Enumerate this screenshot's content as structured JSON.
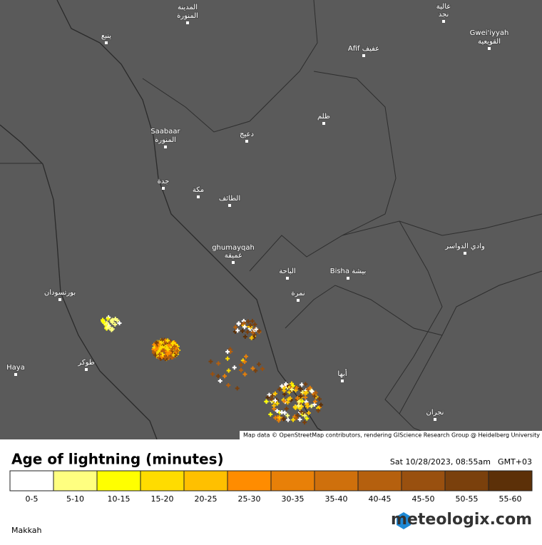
{
  "map": {
    "places": [
      "المدينة",
      "المنورة",
      "ينبع",
      "Afif عفيف",
      "عالية",
      "نجد",
      "Gwei'iyyah",
      "القويعية",
      "ظلم",
      "Saabaar",
      "المنورة",
      "دعيج",
      "جدة",
      "مكة",
      "الطائف",
      "ghumayqah",
      "غميقة",
      "وادي الدواسر",
      "الباحة",
      "Bisha بيشة",
      "نمرة",
      "بورتسودان",
      "طوكر",
      "Haya",
      "أبها",
      "نجران"
    ],
    "attribution": "Map data © OpenStreetMap contributors, rendering GIScience Research Group @ Heidelberg University"
  },
  "legend": {
    "title": "Age of lightning (minutes)",
    "timestamp": "Sat 10/28/2023, 08:55am",
    "timezone": "GMT+03",
    "items": [
      {
        "label": "0-5",
        "color": "#ffffff"
      },
      {
        "label": "5-10",
        "color": "#ffff80"
      },
      {
        "label": "10-15",
        "color": "#ffff00"
      },
      {
        "label": "15-20",
        "color": "#ffdc00"
      },
      {
        "label": "20-25",
        "color": "#ffc000"
      },
      {
        "label": "25-30",
        "color": "#ff8c00"
      },
      {
        "label": "30-35",
        "color": "#e88008"
      },
      {
        "label": "35-40",
        "color": "#cf700c"
      },
      {
        "label": "40-45",
        "color": "#b5600e"
      },
      {
        "label": "45-50",
        "color": "#99500f"
      },
      {
        "label": "50-55",
        "color": "#7a400c"
      },
      {
        "label": "55-60",
        "color": "#5c3008"
      }
    ]
  },
  "footer": {
    "region": "Makkah",
    "brand": "meteologix.com"
  }
}
